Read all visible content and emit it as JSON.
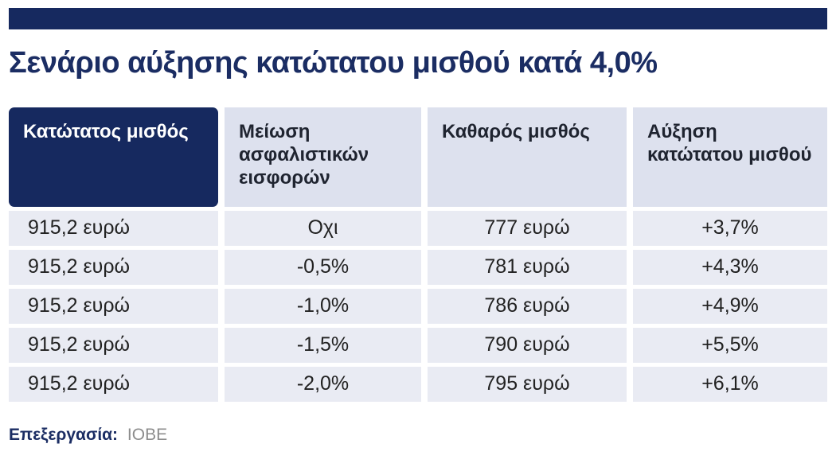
{
  "page": {
    "title": "Σενάριο αύξησης κατώτατου μισθού κατά 4,0%",
    "footer": {
      "label": "Επεξεργασία:",
      "source": "IOBE"
    }
  },
  "table": {
    "headers": [
      "Κατώτατος μισθός",
      "Μείωση ασφαλιστικών εισφορών",
      "Καθαρός μισθός",
      "Αύξηση κατώτατου μισθού"
    ],
    "rows": [
      [
        "915,2 ευρώ",
        "Οχι",
        "777 ευρώ",
        "+3,7%"
      ],
      [
        "915,2 ευρώ",
        "-0,5%",
        "781 ευρώ",
        "+4,3%"
      ],
      [
        "915,2 ευρώ",
        "-1,0%",
        "786 ευρώ",
        "+4,9%"
      ],
      [
        "915,2 ευρώ",
        "-1,5%",
        "790 ευρώ",
        "+5,5%"
      ],
      [
        "915,2 ευρώ",
        "-2,0%",
        "795 ευρώ",
        "+6,1%"
      ]
    ]
  },
  "colors": {
    "navy": "#16295f",
    "title_navy": "#1b2d63",
    "header_light": "#dde1ee",
    "row_bg": "#e9ebf3",
    "source_grey": "#8c8c8c"
  },
  "chart_data": {
    "type": "table",
    "title": "Σενάριο αύξησης κατώτατου μισθού κατά 4,0%",
    "columns": [
      "Κατώτατος μισθός",
      "Μείωση ασφαλιστικών εισφορών",
      "Καθαρός μισθός",
      "Αύξηση κατώτατου μισθού"
    ],
    "rows": [
      [
        "915,2 ευρώ",
        "Οχι",
        "777 ευρώ",
        "+3,7%"
      ],
      [
        "915,2 ευρώ",
        "-0,5%",
        "781 ευρώ",
        "+4,3%"
      ],
      [
        "915,2 ευρώ",
        "-1,0%",
        "786 ευρώ",
        "+4,9%"
      ],
      [
        "915,2 ευρώ",
        "-1,5%",
        "790 ευρώ",
        "+5,5%"
      ],
      [
        "915,2 ευρώ",
        "-2,0%",
        "795 ευρώ",
        "+6,1%"
      ]
    ],
    "source": "IOBE"
  }
}
